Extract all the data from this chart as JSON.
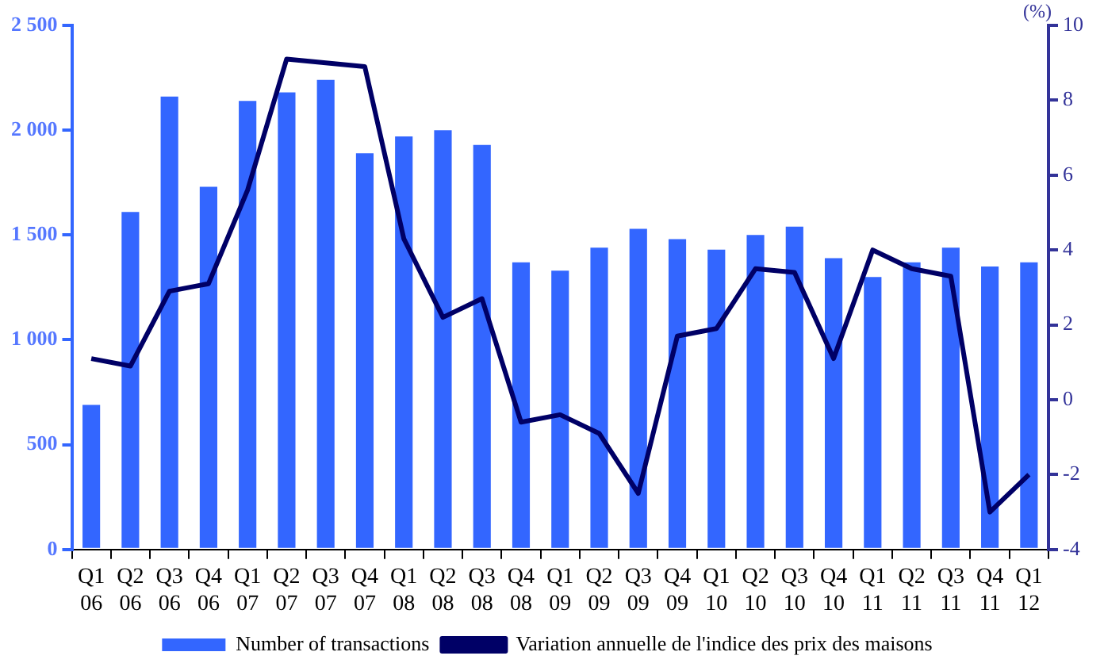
{
  "chart_data": {
    "type": "bar",
    "categories": [
      "Q1 06",
      "Q2 06",
      "Q3 06",
      "Q4 06",
      "Q1 07",
      "Q2 07",
      "Q3 07",
      "Q4 07",
      "Q1 08",
      "Q2 08",
      "Q3 08",
      "Q4 08",
      "Q1 09",
      "Q2 09",
      "Q3 09",
      "Q4 09",
      "Q1 10",
      "Q2 10",
      "Q3 10",
      "Q4 10",
      "Q1 11",
      "Q2 11",
      "Q3 11",
      "Q4 11",
      "Q1 12"
    ],
    "series": [
      {
        "name": "Number of transactions",
        "color": "#3366ff",
        "values": [
          690,
          1610,
          2160,
          1730,
          2140,
          2180,
          2240,
          1890,
          1970,
          2000,
          1930,
          1370,
          1330,
          1440,
          1530,
          1480,
          1430,
          1500,
          1540,
          1390,
          1300,
          1370,
          1440,
          1350,
          1370
        ]
      },
      {
        "name": "Variation annuelle de l'indice des prix des maisons",
        "type": "line",
        "axis": "y2",
        "color": "#000066",
        "values": [
          1.1,
          0.9,
          2.9,
          3.1,
          5.6,
          9.1,
          9.0,
          8.9,
          4.3,
          2.2,
          2.7,
          -0.6,
          -0.4,
          -0.9,
          -2.5,
          1.7,
          1.9,
          3.5,
          3.4,
          1.1,
          4.0,
          3.5,
          3.3,
          -3.0,
          -2.0
        ]
      }
    ],
    "ylim": [
      0,
      2500
    ],
    "yticks": [
      0,
      500,
      {
        "value": 1000,
        "label": "1 000"
      },
      {
        "value": 1500,
        "label": "1 500"
      },
      {
        "value": 2000,
        "label": "2 000"
      },
      {
        "value": 2500,
        "label": "2 500"
      }
    ],
    "y2label": "(%)",
    "y2lim": [
      -4,
      10
    ],
    "y2ticks": [
      -4,
      -2,
      0,
      2,
      4,
      6,
      8,
      10
    ],
    "grid": false,
    "legend": "bottom",
    "marker": "none"
  }
}
